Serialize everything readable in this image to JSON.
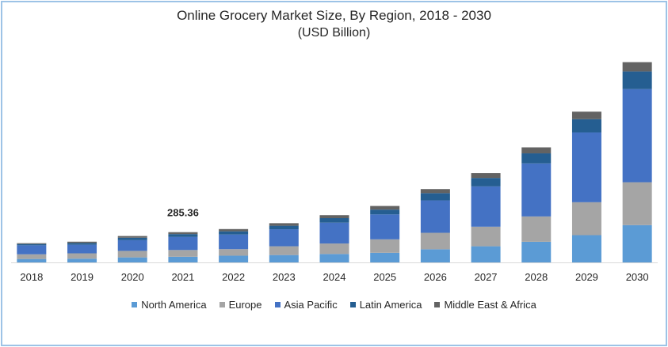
{
  "chart_data": {
    "type": "bar",
    "stacked": true,
    "title": "Online Grocery Market Size, By Region, 2018 - 2030",
    "subtitle": "(USD Billion)",
    "xlabel": "",
    "ylabel": "",
    "categories": [
      "2018",
      "2019",
      "2020",
      "2021",
      "2022",
      "2023",
      "2024",
      "2025",
      "2026",
      "2027",
      "2028",
      "2029",
      "2030"
    ],
    "series": [
      {
        "name": "North America",
        "color": "#5b9bd5",
        "values": [
          32,
          35,
          47,
          53,
          63,
          69,
          79,
          90,
          123,
          151,
          193,
          255,
          349
        ]
      },
      {
        "name": "Europe",
        "color": "#a5a5a5",
        "values": [
          44,
          50,
          61,
          63,
          61,
          82,
          98,
          126,
          154,
          183,
          237,
          308,
          401
        ]
      },
      {
        "name": "Asia Pacific",
        "color": "#4472c4",
        "values": [
          84,
          80,
          100,
          122,
          137,
          159,
          195,
          233,
          303,
          377,
          496,
          653,
          871
        ]
      },
      {
        "name": "Latin America",
        "color": "#255e91",
        "values": [
          12,
          17,
          23,
          27,
          30,
          33,
          42,
          45,
          68,
          79,
          94,
          124,
          165
        ]
      },
      {
        "name": "Middle East & Africa",
        "color": "#636363",
        "values": [
          8,
          12,
          16,
          18,
          21,
          24,
          28,
          34,
          38,
          45,
          56,
          70,
          87
        ]
      }
    ],
    "ylim": [
      0,
      1900
    ],
    "grid": false,
    "legend_position": "bottom",
    "annotations": [
      {
        "category": "2021",
        "text": "285.36"
      }
    ]
  }
}
